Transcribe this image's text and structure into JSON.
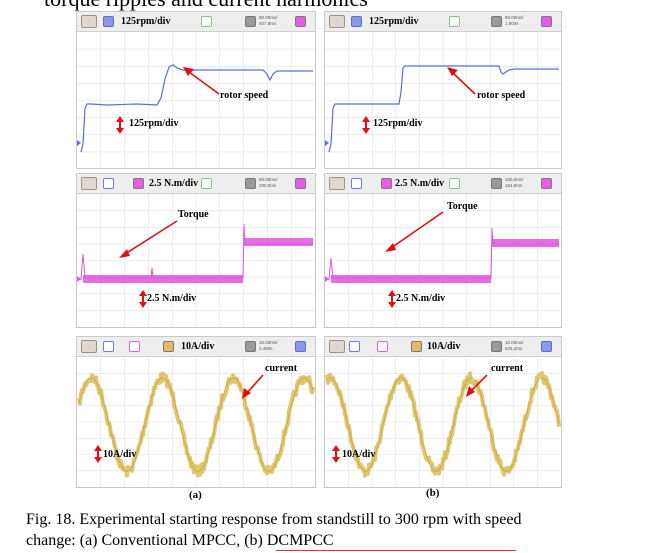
{
  "header_fragment": "torque ripples and current harmonics",
  "colors": {
    "speed": "#5a6ee0",
    "torque": "#e055e0",
    "current": "#dcc060",
    "arrow": "#e01010",
    "grid": "#d8d8d8"
  },
  "panels": [
    {
      "id": "a",
      "sublabel": "(a)",
      "speed": {
        "toolbar_label": "125rpm/div",
        "time_lines": [
          "80.00ms/",
          "407.8ms"
        ],
        "annotation": "rotor speed",
        "scale_label": "125rpm/div"
      },
      "torque": {
        "toolbar_label": "2.5 N.m/div",
        "time_lines": [
          "80.00ms/",
          "230.0ms"
        ],
        "annotation": "Torque",
        "scale_label": "2.5 N.m/div"
      },
      "current": {
        "toolbar_label": "10A/div",
        "time_lines": [
          "10.00ms/",
          "3.460s"
        ],
        "annotation": "current",
        "scale_label": "10A/div"
      }
    },
    {
      "id": "b",
      "sublabel": "(b)",
      "speed": {
        "toolbar_label": "125rpm/div",
        "time_lines": [
          "80.00ms/",
          "1.904s"
        ],
        "annotation": "rotor speed",
        "scale_label": "125rpm/div"
      },
      "torque": {
        "toolbar_label": "2.5 N.m/div",
        "time_lines": [
          "100.0ms/",
          "164.0ms"
        ],
        "annotation": "Torque",
        "scale_label": "2.5 N.m/div"
      },
      "current": {
        "toolbar_label": "10A/div",
        "time_lines": [
          "10.00ms/",
          "625.2ms"
        ],
        "annotation": "current",
        "scale_label": "10A/div"
      }
    }
  ],
  "caption": {
    "line1": "Fig. 18.  Experimental starting response from standstill to 300 rpm with speed",
    "line2": "change: (a) Conventional MPCC, (b) DCMPCC"
  }
}
